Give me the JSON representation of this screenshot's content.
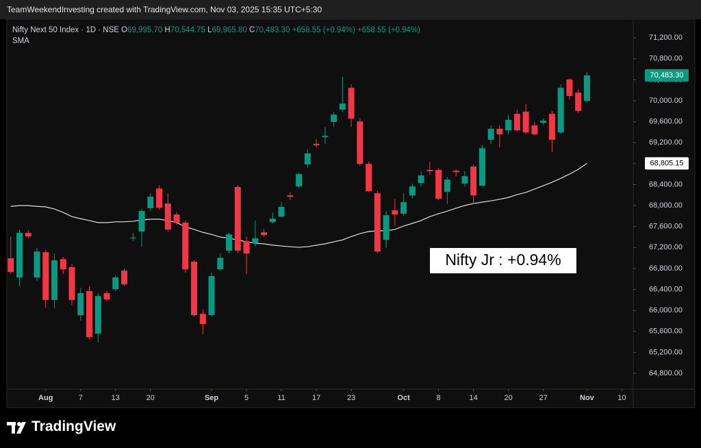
{
  "header": {
    "caption": "TeamWeekendInvesting created with TradingView.com, Nov 03, 2025 15:35 UTC+5:30"
  },
  "footer": {
    "brand": "TradingView"
  },
  "chart_data": {
    "type": "candlestick",
    "symbol": "Nifty Next 50 Index · 1D · NSE",
    "ohlc_legend": [
      {
        "key": "O",
        "value": "69,995.70"
      },
      {
        "key": "H",
        "value": "70,544.75"
      },
      {
        "key": "L",
        "value": "69,965.80"
      },
      {
        "key": "C",
        "value": "70,483.30"
      }
    ],
    "changes": [
      "+658.55 (+0.94%)",
      "+658.55 (+0.94%)"
    ],
    "indicator_name": "SMA",
    "annotation": "Nifty Jr : +0.94%",
    "up_color": "#089981",
    "down_color": "#f23645",
    "sma_color": "#e0e0e0",
    "grid": false,
    "candles": [
      {
        "open": 66995,
        "high": 67410,
        "low": 66695,
        "close": 66735
      },
      {
        "open": 66630,
        "high": 67545,
        "low": 66460,
        "close": 67480
      },
      {
        "open": 67480,
        "high": 67530,
        "low": 67375,
        "close": 67410
      },
      {
        "open": 66630,
        "high": 67190,
        "low": 66565,
        "close": 67125
      },
      {
        "open": 67110,
        "high": 67150,
        "low": 66040,
        "close": 66200
      },
      {
        "open": 66200,
        "high": 67085,
        "low": 66040,
        "close": 66955
      },
      {
        "open": 66980,
        "high": 67020,
        "low": 66695,
        "close": 66785
      },
      {
        "open": 66825,
        "high": 66890,
        "low": 66105,
        "close": 66200
      },
      {
        "open": 65910,
        "high": 66435,
        "low": 65805,
        "close": 66330
      },
      {
        "open": 66370,
        "high": 66460,
        "low": 65455,
        "close": 65490
      },
      {
        "open": 65560,
        "high": 66330,
        "low": 65390,
        "close": 66275
      },
      {
        "open": 66330,
        "high": 66370,
        "low": 66170,
        "close": 66210
      },
      {
        "open": 66405,
        "high": 66670,
        "low": 66370,
        "close": 66630
      },
      {
        "open": 66760,
        "high": 66800,
        "low": 66460,
        "close": 66500
      },
      {
        "open": 67375,
        "high": 67480,
        "low": 67320,
        "close": 67390
      },
      {
        "open": 67505,
        "high": 67935,
        "low": 67215,
        "close": 67895
      },
      {
        "open": 67950,
        "high": 68235,
        "low": 67895,
        "close": 68170
      },
      {
        "open": 68325,
        "high": 68390,
        "low": 67920,
        "close": 67960
      },
      {
        "open": 68040,
        "high": 68235,
        "low": 67505,
        "close": 67545
      },
      {
        "open": 67830,
        "high": 67870,
        "low": 67635,
        "close": 67675
      },
      {
        "open": 67675,
        "high": 67715,
        "low": 66720,
        "close": 66785
      },
      {
        "open": 66930,
        "high": 66955,
        "low": 65885,
        "close": 65910
      },
      {
        "open": 65935,
        "high": 66015,
        "low": 65545,
        "close": 65740
      },
      {
        "open": 65910,
        "high": 66720,
        "low": 65885,
        "close": 66655
      },
      {
        "open": 66785,
        "high": 67085,
        "low": 66760,
        "close": 67005
      },
      {
        "open": 67140,
        "high": 67480,
        "low": 67085,
        "close": 67450
      },
      {
        "open": 68355,
        "high": 68390,
        "low": 67085,
        "close": 67140
      },
      {
        "open": 67320,
        "high": 67410,
        "low": 66695,
        "close": 67085
      },
      {
        "open": 67280,
        "high": 67715,
        "low": 67215,
        "close": 67375
      },
      {
        "open": 67490,
        "high": 67555,
        "low": 67410,
        "close": 67440
      },
      {
        "open": 67685,
        "high": 67870,
        "low": 67660,
        "close": 67750
      },
      {
        "open": 67790,
        "high": 68065,
        "low": 67765,
        "close": 67975
      },
      {
        "open": 68195,
        "high": 68260,
        "low": 68105,
        "close": 68170
      },
      {
        "open": 68365,
        "high": 68625,
        "low": 68340,
        "close": 68600
      },
      {
        "open": 68785,
        "high": 69070,
        "low": 68720,
        "close": 68995
      },
      {
        "open": 69175,
        "high": 69265,
        "low": 69110,
        "close": 69150
      },
      {
        "open": 69305,
        "high": 69500,
        "low": 69175,
        "close": 69330
      },
      {
        "open": 69595,
        "high": 69790,
        "low": 69500,
        "close": 69735
      },
      {
        "open": 69830,
        "high": 70455,
        "low": 69790,
        "close": 69945
      },
      {
        "open": 70245,
        "high": 70310,
        "low": 69500,
        "close": 69660
      },
      {
        "open": 69605,
        "high": 69670,
        "low": 68760,
        "close": 68795
      },
      {
        "open": 68795,
        "high": 68835,
        "low": 68260,
        "close": 68275
      },
      {
        "open": 68235,
        "high": 68285,
        "low": 67085,
        "close": 67125
      },
      {
        "open": 67345,
        "high": 67895,
        "low": 67190,
        "close": 67815
      },
      {
        "open": 67910,
        "high": 68130,
        "low": 67610,
        "close": 67830
      },
      {
        "open": 67845,
        "high": 68235,
        "low": 67805,
        "close": 68065
      },
      {
        "open": 68195,
        "high": 68420,
        "low": 68130,
        "close": 68365
      },
      {
        "open": 68430,
        "high": 68655,
        "low": 68365,
        "close": 68575
      },
      {
        "open": 68680,
        "high": 68835,
        "low": 68590,
        "close": 68655
      },
      {
        "open": 68680,
        "high": 68720,
        "low": 68105,
        "close": 68130
      },
      {
        "open": 68260,
        "high": 68550,
        "low": 68025,
        "close": 68495
      },
      {
        "open": 68665,
        "high": 68690,
        "low": 68550,
        "close": 68640
      },
      {
        "open": 68420,
        "high": 68655,
        "low": 68365,
        "close": 68560
      },
      {
        "open": 68745,
        "high": 68785,
        "low": 68025,
        "close": 68195
      },
      {
        "open": 68380,
        "high": 69150,
        "low": 68365,
        "close": 69095
      },
      {
        "open": 69255,
        "high": 69530,
        "low": 69175,
        "close": 69465
      },
      {
        "open": 69465,
        "high": 69530,
        "low": 69110,
        "close": 69360
      },
      {
        "open": 69435,
        "high": 69725,
        "low": 69360,
        "close": 69635
      },
      {
        "open": 69750,
        "high": 69830,
        "low": 69410,
        "close": 69435
      },
      {
        "open": 69790,
        "high": 69935,
        "low": 69360,
        "close": 69395
      },
      {
        "open": 69530,
        "high": 69595,
        "low": 69330,
        "close": 69360
      },
      {
        "open": 69580,
        "high": 69660,
        "low": 69540,
        "close": 69620
      },
      {
        "open": 69750,
        "high": 69805,
        "low": 69020,
        "close": 69255
      },
      {
        "open": 69395,
        "high": 70310,
        "low": 69370,
        "close": 70245
      },
      {
        "open": 70405,
        "high": 70430,
        "low": 70025,
        "close": 70090
      },
      {
        "open": 70155,
        "high": 70220,
        "low": 69765,
        "close": 69805
      },
      {
        "open": 69995.7,
        "high": 70544.75,
        "low": 69965.8,
        "close": 70483.3
      }
    ],
    "sma": [
      67985,
      68000,
      68000,
      67985,
      67975,
      67935,
      67870,
      67790,
      67750,
      67715,
      67675,
      67675,
      67690,
      67690,
      67700,
      67725,
      67740,
      67740,
      67715,
      67675,
      67595,
      67545,
      67490,
      67450,
      67400,
      67375,
      67345,
      67310,
      67280,
      67270,
      67245,
      67230,
      67215,
      67205,
      67215,
      67245,
      67270,
      67310,
      67345,
      67410,
      67465,
      67505,
      67520,
      67520,
      67545,
      67610,
      67660,
      67715,
      67790,
      67845,
      67895,
      67950,
      68000,
      68040,
      68065,
      68090,
      68120,
      68155,
      68210,
      68250,
      68315,
      68380,
      68445,
      68520,
      68600,
      68690,
      68805.15
    ],
    "last_price_label": "70,483.30",
    "sma_label": "68,805.15",
    "xlim": [
      -0.45,
      71.3
    ],
    "xticks": [
      {
        "value": 4,
        "label": "Aug"
      },
      {
        "value": 8,
        "label": "7"
      },
      {
        "value": 12,
        "label": "13"
      },
      {
        "value": 16,
        "label": "20"
      },
      {
        "value": 23,
        "label": "Sep"
      },
      {
        "value": 27,
        "label": "5"
      },
      {
        "value": 31,
        "label": "11"
      },
      {
        "value": 35,
        "label": "17"
      },
      {
        "value": 39,
        "label": "23"
      },
      {
        "value": 45,
        "label": "Oct"
      },
      {
        "value": 49,
        "label": "8"
      },
      {
        "value": 53,
        "label": "14"
      },
      {
        "value": 57,
        "label": "20"
      },
      {
        "value": 61,
        "label": "27"
      },
      {
        "value": 66,
        "label": "Nov"
      },
      {
        "value": 70,
        "label": "10"
      }
    ],
    "ylim": [
      64500,
      71555
    ],
    "yticks": [
      {
        "value": 71200,
        "label": "71,200.00"
      },
      {
        "value": 70800,
        "label": "70,800.00"
      },
      {
        "value": 70400,
        "label": "70,400.00"
      },
      {
        "value": 70000,
        "label": "70,000.00"
      },
      {
        "value": 69600,
        "label": "69,600.00"
      },
      {
        "value": 69200,
        "label": "69,200.00"
      },
      {
        "value": 68800,
        "label": "68,800.00"
      },
      {
        "value": 68400,
        "label": "68,400.00"
      },
      {
        "value": 68000,
        "label": "68,000.00"
      },
      {
        "value": 67600,
        "label": "67,600.00"
      },
      {
        "value": 67200,
        "label": "67,200.00"
      },
      {
        "value": 66800,
        "label": "66,800.00"
      },
      {
        "value": 66400,
        "label": "66,400.00"
      },
      {
        "value": 66000,
        "label": "66,000.00"
      },
      {
        "value": 65600,
        "label": "65,600.00"
      },
      {
        "value": 65200,
        "label": "65,200.00"
      },
      {
        "value": 64800,
        "label": "64,800.00"
      }
    ]
  }
}
